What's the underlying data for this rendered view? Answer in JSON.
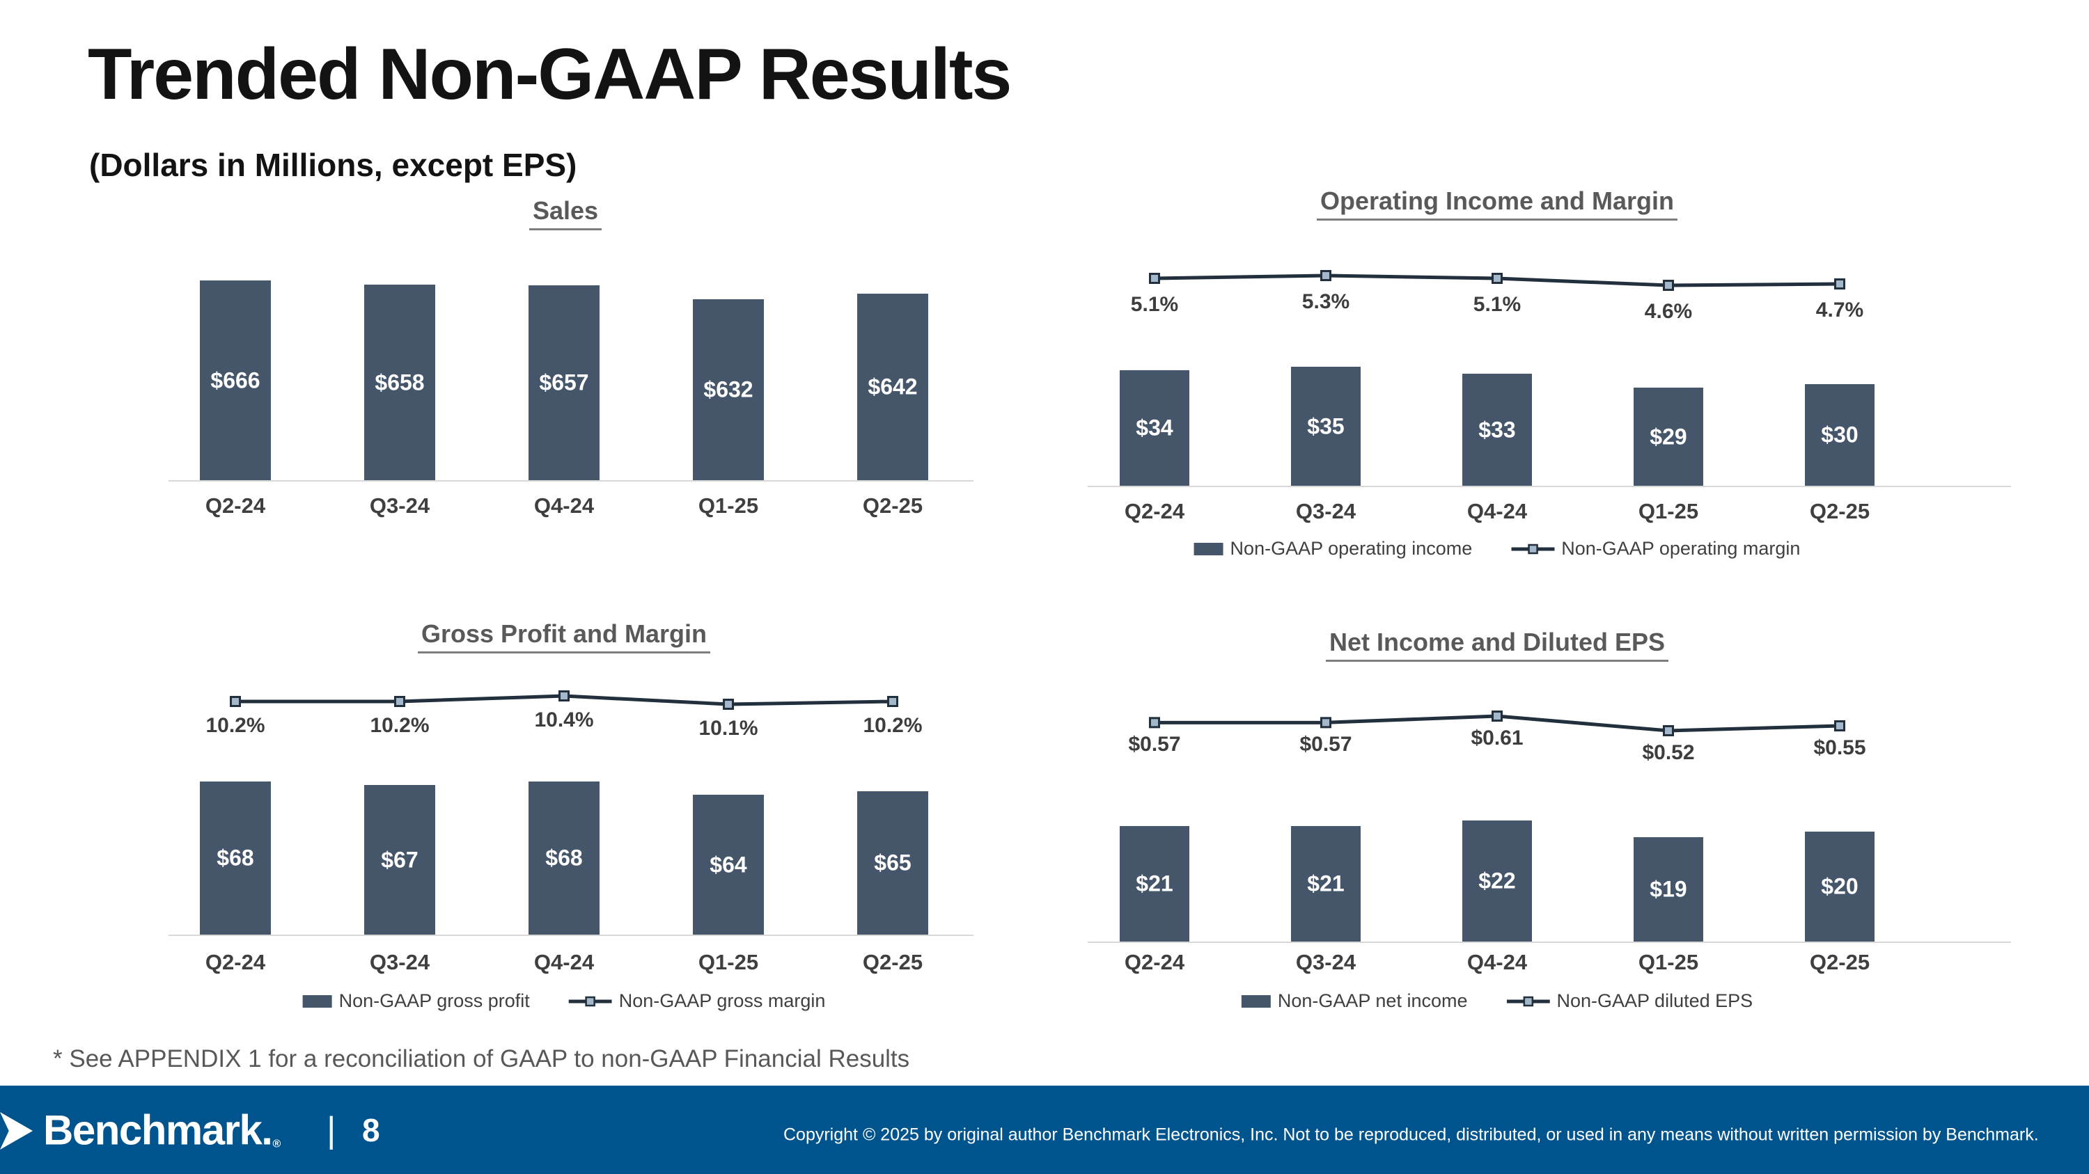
{
  "page": {
    "title": "Trended Non-GAAP Results",
    "subtitle": "(Dollars in Millions, except EPS)",
    "footnote": "* See APPENDIX 1 for a reconciliation of GAAP to non-GAAP Financial Results"
  },
  "footer": {
    "logo_text": "Benchmark.",
    "registered_mark": "®",
    "divider": "|",
    "page_number": "8",
    "copyright": "Copyright © 2025 by original author Benchmark Electronics, Inc. Not to be reproduced, distributed, or used in any means without written permission by Benchmark.",
    "background_color": "#00548E"
  },
  "colors": {
    "bar_fill": "#45566B",
    "line_stroke": "#222F3D",
    "marker_fill": "#A4B8CB",
    "chart_title": "#595959",
    "axis_label": "#3F3F3F",
    "data_label_dark": "#3D3D3D",
    "data_label_light": "#FFFFFF",
    "axis_line": "#D8D8D8"
  },
  "chart_data": [
    {
      "id": "sales",
      "type": "bar",
      "title": "Sales",
      "categories": [
        "Q2-24",
        "Q3-24",
        "Q4-24",
        "Q1-25",
        "Q2-25"
      ],
      "series": [
        {
          "name": "Sales",
          "kind": "bar",
          "values": [
            666,
            658,
            657,
            632,
            642
          ],
          "labels": [
            "$666",
            "$658",
            "$657",
            "$632",
            "$642"
          ]
        }
      ],
      "ylim": [
        300,
        730
      ],
      "grid": false,
      "legend_position": "none"
    },
    {
      "id": "operating-income",
      "type": "bar+line",
      "title": "Operating Income and Margin",
      "categories": [
        "Q2-24",
        "Q3-24",
        "Q4-24",
        "Q1-25",
        "Q2-25"
      ],
      "series": [
        {
          "name": "Non-GAAP operating income",
          "kind": "bar",
          "values": [
            34,
            35,
            33,
            29,
            30
          ],
          "labels": [
            "$34",
            "$35",
            "$33",
            "$29",
            "$30"
          ]
        },
        {
          "name": "Non-GAAP operating margin",
          "kind": "line",
          "values": [
            5.1,
            5.3,
            5.1,
            4.6,
            4.7
          ],
          "labels": [
            "5.1%",
            "5.3%",
            "5.1%",
            "4.6%",
            "4.7%"
          ]
        }
      ],
      "ylim": [
        0,
        47
      ],
      "line_ylim": [
        4.1,
        5.8
      ],
      "grid": false,
      "legend_position": "bottom"
    },
    {
      "id": "gross-profit",
      "type": "bar+line",
      "title": "Gross Profit and Margin",
      "categories": [
        "Q2-24",
        "Q3-24",
        "Q4-24",
        "Q1-25",
        "Q2-25"
      ],
      "series": [
        {
          "name": "Non-GAAP gross profit",
          "kind": "bar",
          "values": [
            68,
            67,
            68,
            64,
            65
          ],
          "labels": [
            "$68",
            "$67",
            "$68",
            "$64",
            "$65"
          ]
        },
        {
          "name": "Non-GAAP gross margin",
          "kind": "line",
          "values": [
            10.2,
            10.2,
            10.4,
            10.1,
            10.2
          ],
          "labels": [
            "10.2%",
            "10.2%",
            "10.4%",
            "10.1%",
            "10.2%"
          ]
        }
      ],
      "ylim": [
        20,
        88
      ],
      "line_ylim": [
        9.55,
        10.75
      ],
      "grid": false,
      "legend_position": "bottom"
    },
    {
      "id": "net-income",
      "type": "bar+line",
      "title": "Net Income and Diluted EPS",
      "categories": [
        "Q2-24",
        "Q3-24",
        "Q4-24",
        "Q1-25",
        "Q2-25"
      ],
      "series": [
        {
          "name": "Non-GAAP net income",
          "kind": "bar",
          "values": [
            21,
            21,
            22,
            19,
            20
          ],
          "labels": [
            "$21",
            "$21",
            "$22",
            "$19",
            "$20"
          ]
        },
        {
          "name": "Non-GAAP diluted EPS",
          "kind": "line",
          "values": [
            0.57,
            0.57,
            0.61,
            0.52,
            0.55
          ],
          "labels": [
            "$0.57",
            "$0.57",
            "$0.61",
            "$0.52",
            "$0.55"
          ]
        }
      ],
      "ylim": [
        0,
        30
      ],
      "line_ylim": [
        0.4,
        0.7
      ],
      "grid": false,
      "legend_position": "bottom"
    }
  ]
}
